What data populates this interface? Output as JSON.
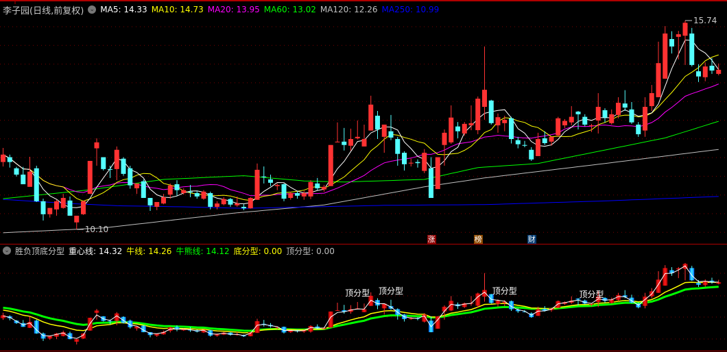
{
  "header": {
    "title": "李子园(日线,前复权)",
    "ma_labels": [
      {
        "text": "MA5: 14.33",
        "color": "#ffffff"
      },
      {
        "text": "MA10: 14.73",
        "color": "#ffff00"
      },
      {
        "text": "MA20: 13.95",
        "color": "#ff00ff"
      },
      {
        "text": "MA60: 13.02",
        "color": "#00ff00"
      },
      {
        "text": "MA120: 12.26",
        "color": "#c0c0c0"
      },
      {
        "text": "MA250: 10.99",
        "color": "#0000ff"
      }
    ]
  },
  "indicator_header": {
    "title": "胜负顶底分型",
    "labels": [
      {
        "text": "重心线: 14.32",
        "color": "#ffffff"
      },
      {
        "text": "牛线: 14.26",
        "color": "#ffff00"
      },
      {
        "text": "牛熊线: 14.12",
        "color": "#00ff00"
      },
      {
        "text": "底分型: 0.00",
        "color": "#ffff00"
      },
      {
        "text": "顶分型: 0.00",
        "color": "#c0c0c0"
      }
    ]
  },
  "markers": [
    {
      "text": "涨",
      "color": "#8b0000",
      "index": 64
    },
    {
      "text": "榜",
      "color": "#8b4a00",
      "index": 71
    },
    {
      "text": "财",
      "color": "#003a70",
      "index": 79
    }
  ],
  "chart_data": {
    "type": "candlestick",
    "price_range": [
      10.1,
      15.74
    ],
    "high_label": {
      "text": "15.74",
      "index": 102
    },
    "low_label": {
      "text": "10.10",
      "index": 11
    },
    "colors": {
      "up": "#ff3232",
      "down": "#54ffff"
    },
    "candles_ohlc": [
      [
        11.92,
        12.3,
        11.8,
        12.12
      ],
      [
        12.05,
        12.12,
        11.77,
        11.92
      ],
      [
        11.75,
        11.79,
        11.53,
        11.58
      ],
      [
        11.58,
        11.79,
        11.32,
        11.32
      ],
      [
        11.25,
        12.06,
        11.25,
        11.66
      ],
      [
        11.75,
        11.82,
        10.84,
        10.86
      ],
      [
        10.86,
        10.93,
        10.34,
        10.51
      ],
      [
        10.51,
        10.68,
        10.42,
        10.68
      ],
      [
        10.64,
        10.9,
        10.47,
        10.86
      ],
      [
        10.68,
        11.06,
        10.66,
        10.95
      ],
      [
        10.88,
        10.99,
        10.47,
        10.47
      ],
      [
        10.29,
        10.47,
        10.1,
        10.47
      ],
      [
        10.51,
        10.88,
        10.49,
        10.86
      ],
      [
        11.06,
        11.95,
        11.06,
        11.95
      ],
      [
        12.29,
        12.56,
        11.82,
        12.45
      ],
      [
        12.05,
        12.05,
        11.69,
        11.73
      ],
      [
        11.73,
        11.82,
        11.49,
        11.71
      ],
      [
        11.73,
        12.34,
        11.43,
        12.25
      ],
      [
        12.01,
        12.05,
        11.55,
        11.6
      ],
      [
        11.75,
        11.82,
        11.2,
        11.29
      ],
      [
        11.21,
        11.34,
        11.06,
        11.34
      ],
      [
        11.4,
        11.45,
        10.95,
        10.95
      ],
      [
        10.95,
        10.95,
        10.6,
        10.75
      ],
      [
        10.71,
        10.84,
        10.62,
        10.84
      ],
      [
        10.8,
        11.06,
        10.78,
        10.97
      ],
      [
        11.04,
        11.34,
        10.93,
        11.29
      ],
      [
        11.32,
        11.43,
        11.01,
        11.16
      ],
      [
        11.08,
        11.21,
        11.04,
        11.16
      ],
      [
        11.12,
        11.3,
        10.97,
        11.1
      ],
      [
        11.08,
        11.14,
        10.93,
        10.99
      ],
      [
        10.93,
        11.16,
        10.9,
        11.12
      ],
      [
        11.08,
        11.12,
        10.64,
        10.71
      ],
      [
        10.71,
        10.86,
        10.64,
        10.8
      ],
      [
        10.78,
        10.97,
        10.75,
        10.92
      ],
      [
        10.92,
        10.95,
        10.71,
        10.77
      ],
      [
        10.75,
        10.99,
        10.71,
        10.8
      ],
      [
        10.71,
        10.78,
        10.62,
        10.67
      ],
      [
        10.67,
        10.97,
        10.66,
        10.95
      ],
      [
        10.9,
        11.88,
        10.9,
        11.71
      ],
      [
        11.53,
        11.8,
        11.34,
        11.51
      ],
      [
        11.45,
        11.58,
        11.27,
        11.36
      ],
      [
        11.27,
        11.34,
        11.16,
        11.3
      ],
      [
        11.32,
        11.34,
        10.86,
        10.93
      ],
      [
        10.95,
        11.12,
        10.9,
        11.08
      ],
      [
        11.08,
        11.12,
        10.93,
        11.01
      ],
      [
        10.99,
        11.14,
        10.9,
        11.08
      ],
      [
        10.99,
        11.43,
        10.92,
        11.38
      ],
      [
        11.34,
        11.49,
        11.16,
        11.21
      ],
      [
        11.18,
        11.3,
        11.12,
        11.25
      ],
      [
        11.27,
        12.38,
        11.27,
        12.38
      ],
      [
        12.45,
        12.99,
        12.45,
        12.47
      ],
      [
        12.47,
        12.84,
        12.23,
        12.38
      ],
      [
        12.36,
        12.82,
        12.23,
        12.54
      ],
      [
        12.56,
        13.04,
        12.53,
        12.6
      ],
      [
        12.34,
        12.93,
        12.34,
        12.54
      ],
      [
        12.77,
        13.71,
        12.77,
        13.47
      ],
      [
        13.17,
        13.3,
        12.54,
        12.8
      ],
      [
        12.6,
        12.93,
        12.17,
        12.93
      ],
      [
        12.75,
        13.19,
        12.51,
        12.58
      ],
      [
        12.54,
        12.6,
        11.82,
        12.14
      ],
      [
        12.17,
        12.21,
        11.69,
        11.86
      ],
      [
        11.88,
        12.01,
        11.8,
        11.9
      ],
      [
        11.92,
        11.99,
        11.77,
        11.89
      ],
      [
        11.68,
        12.27,
        11.62,
        12.17
      ],
      [
        11.75,
        12.05,
        10.95,
        10.95
      ],
      [
        11.19,
        12.05,
        11.19,
        12.05
      ],
      [
        12.38,
        12.8,
        11.82,
        12.71
      ],
      [
        12.45,
        13.45,
        12.41,
        13.12
      ],
      [
        12.88,
        13.0,
        12.56,
        12.75
      ],
      [
        12.69,
        13.0,
        12.63,
        12.95
      ],
      [
        12.91,
        13.45,
        12.78,
        12.97
      ],
      [
        12.78,
        13.69,
        12.67,
        13.63
      ],
      [
        13.41,
        15.04,
        13.06,
        13.87
      ],
      [
        13.58,
        13.6,
        12.93,
        12.97
      ],
      [
        12.91,
        13.23,
        12.71,
        13.13
      ],
      [
        12.97,
        13.17,
        12.75,
        13.06
      ],
      [
        13.1,
        13.14,
        12.42,
        12.54
      ],
      [
        12.51,
        12.6,
        12.29,
        12.4
      ],
      [
        12.38,
        12.49,
        12.32,
        12.36
      ],
      [
        12.25,
        12.32,
        11.95,
        11.99
      ],
      [
        12.08,
        12.71,
        12.08,
        12.54
      ],
      [
        12.56,
        12.75,
        12.38,
        12.43
      ],
      [
        12.47,
        12.6,
        12.36,
        12.6
      ],
      [
        12.64,
        13.14,
        12.6,
        13.1
      ],
      [
        12.91,
        13.08,
        12.84,
        13.03
      ],
      [
        12.99,
        13.43,
        12.91,
        13.14
      ],
      [
        13.28,
        13.3,
        12.8,
        13.21
      ],
      [
        13.14,
        13.21,
        12.88,
        12.93
      ],
      [
        12.89,
        12.95,
        12.73,
        12.91
      ],
      [
        13.04,
        13.78,
        12.69,
        13.41
      ],
      [
        13.32,
        13.37,
        12.99,
        13.12
      ],
      [
        12.97,
        13.34,
        12.93,
        13.21
      ],
      [
        13.19,
        13.67,
        13.1,
        13.52
      ],
      [
        13.5,
        13.86,
        13.3,
        13.39
      ],
      [
        13.34,
        13.54,
        12.95,
        12.99
      ],
      [
        12.93,
        13.0,
        12.6,
        12.67
      ],
      [
        12.77,
        13.67,
        12.6,
        13.41
      ],
      [
        13.43,
        14.0,
        13.3,
        13.78
      ],
      [
        13.67,
        15.17,
        13.67,
        14.59
      ],
      [
        14.17,
        15.59,
        14.17,
        15.39
      ],
      [
        15.24,
        15.45,
        14.85,
        15.04
      ],
      [
        15.3,
        15.46,
        14.69,
        15.37
      ],
      [
        15.33,
        15.74,
        14.54,
        15.68
      ],
      [
        15.39,
        15.54,
        14.5,
        14.54
      ],
      [
        14.37,
        14.56,
        14.08,
        14.23
      ],
      [
        14.21,
        14.61,
        14.1,
        14.5
      ],
      [
        14.52,
        14.72,
        14.3,
        14.39
      ],
      [
        14.3,
        14.58,
        14.26,
        14.41
      ]
    ],
    "moving_averages": [
      {
        "name": "MA60",
        "color": "#00ff00",
        "points": [
          [
            0,
            10.93
          ],
          [
            13,
            11.17
          ],
          [
            24,
            11.45
          ],
          [
            36,
            11.55
          ],
          [
            45,
            11.41
          ],
          [
            51,
            11.38
          ],
          [
            63,
            11.45
          ],
          [
            71,
            11.77
          ],
          [
            80,
            11.88
          ],
          [
            91,
            12.28
          ],
          [
            99,
            12.57
          ],
          [
            107,
            13.02
          ]
        ]
      },
      {
        "name": "MA120",
        "color": "#c0c0c0",
        "points": [
          [
            0,
            10.01
          ],
          [
            15,
            10.14
          ],
          [
            34,
            10.53
          ],
          [
            37,
            10.58
          ],
          [
            48,
            10.76
          ],
          [
            63,
            11.25
          ],
          [
            72,
            11.49
          ],
          [
            90,
            11.88
          ],
          [
            107,
            12.26
          ]
        ]
      },
      {
        "name": "MA250",
        "color": "#0000ff",
        "points": [
          [
            0,
            10.91
          ],
          [
            10,
            10.8
          ],
          [
            17,
            10.74
          ],
          [
            27,
            10.71
          ],
          [
            36,
            10.67
          ],
          [
            57,
            10.75
          ],
          [
            72,
            10.77
          ],
          [
            90,
            10.87
          ],
          [
            107,
            10.99
          ]
        ]
      }
    ],
    "indicator_pattern_labels": [
      {
        "text": "顶分型",
        "index": 53
      },
      {
        "text": "顶分型",
        "index": 58
      },
      {
        "text": "顶分型",
        "index": 75
      },
      {
        "text": "顶分型",
        "index": 88
      }
    ]
  }
}
